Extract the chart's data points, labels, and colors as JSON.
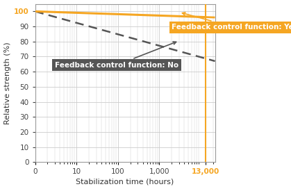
{
  "xlabel": "Stabilization time (hours)",
  "ylabel": "Relative strength (%)",
  "xlim_log": [
    1,
    22000
  ],
  "ylim": [
    0,
    105
  ],
  "yticks": [
    0,
    10,
    20,
    30,
    40,
    50,
    60,
    70,
    80,
    90,
    100
  ],
  "xtick_positions": [
    1,
    10,
    100,
    1000,
    13000
  ],
  "xtick_labels": [
    "0",
    "10",
    "100",
    "1,000",
    "13,000"
  ],
  "vline_x": 13000,
  "vline_color": "#F5A623",
  "orange_line_color": "#F5A623",
  "gray_line_color": "#555555",
  "orange_y_start": 100,
  "orange_y_end": 96,
  "gray_y_start": 100,
  "gray_y_end": 67,
  "label_yes": "Feedback control function: Yes",
  "label_no": "Feedback control function: No",
  "label_yes_bg": "#F5A623",
  "label_no_bg": "#555555",
  "label_text_color": "#ffffff",
  "annotation_100_color": "#F5A623",
  "annotation_13000_color": "#F5A623",
  "grid_color": "#cccccc",
  "background_color": "#ffffff"
}
